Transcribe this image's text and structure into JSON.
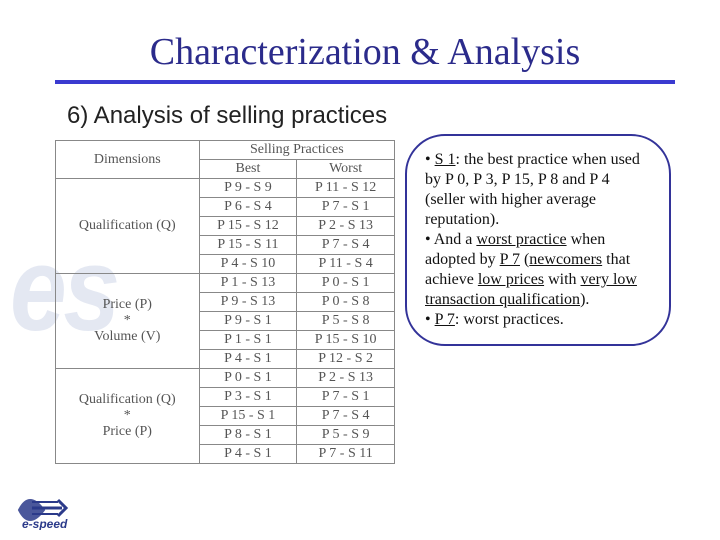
{
  "title": "Characterization & Analysis",
  "subtitle": "6) Analysis of selling practices",
  "table": {
    "header_dimensions": "Dimensions",
    "header_practices": "Selling Practices",
    "header_best": "Best",
    "header_worst": "Worst",
    "blocks": [
      {
        "dimension": "Qualification (Q)",
        "rows": [
          [
            "P 9 - S 9",
            "P 11 - S 12"
          ],
          [
            "P 6 - S 4",
            "P 7 - S 1"
          ],
          [
            "P 15 - S 12",
            "P 2 - S 13"
          ],
          [
            "P 15 - S 11",
            "P 7 - S 4"
          ],
          [
            "P 4 - S 10",
            "P 11 - S 4"
          ]
        ]
      },
      {
        "dimension": "Price (P)\n*\nVolume (V)",
        "rows": [
          [
            "P 1 - S 13",
            "P 0 - S 1"
          ],
          [
            "P 9 - S 13",
            "P 0 - S 8"
          ],
          [
            "P 9 - S 1",
            "P 5 - S 8"
          ],
          [
            "P 1 - S 1",
            "P 15 - S 10"
          ],
          [
            "P 4 - S 1",
            "P 12 - S 2"
          ]
        ]
      },
      {
        "dimension": "Qualification (Q)\n*\nPrice (P)",
        "rows": [
          [
            "P 0 - S 1",
            "P 2 - S 13"
          ],
          [
            "P 3 - S 1",
            "P 7 - S 1"
          ],
          [
            "P 15 - S 1",
            "P 7 - S 4"
          ],
          [
            "P 8 - S 1",
            "P 5 - S 9"
          ],
          [
            "P 4 - S 1",
            "P 7 - S 11"
          ]
        ]
      }
    ]
  },
  "callout": {
    "line1_prefix": "• ",
    "line1_u": "S 1",
    "line1_rest": ": the best practice when used by P 0, P 3, P 15, P 8 and P 4 (seller with higher average reputation).",
    "line2_prefix": "• And a ",
    "line2_u1": "worst practice",
    "line2_mid": " when adopted by ",
    "line2_u2": "P 7",
    "line2_paren_open": " (",
    "line2_u3": "newcomers",
    "line2_mid2": " that achieve ",
    "line2_u4": "low prices",
    "line2_mid3": " with ",
    "line2_u5": "very low transaction qualification",
    "line2_end": ").",
    "line3_prefix": "• ",
    "line3_u": "P 7",
    "line3_rest": ": worst practices."
  },
  "brand": {
    "bg_text": "es",
    "logo_text": "e-speed"
  },
  "colors": {
    "title": "#2b2b8b",
    "underline": "#3a3ad0",
    "callout_border": "#333399",
    "table_border": "#888888",
    "brand_bg": "#cfd6e8",
    "logo_stroke": "#2b3a8a"
  }
}
